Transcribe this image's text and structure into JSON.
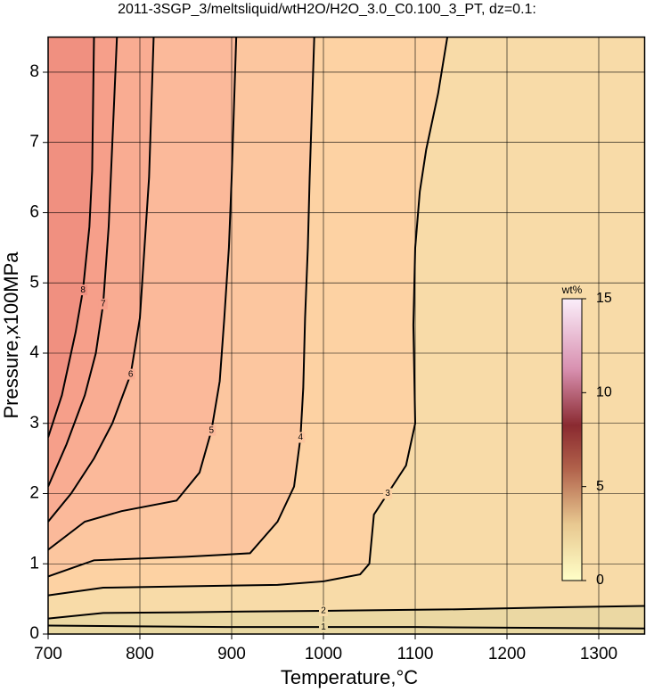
{
  "chart_data": {
    "type": "contour",
    "title": "2011-3SGP_3/meltsliquid/wtH2O/H2O_3.0_C0.100_3_PT, dz=0.1:",
    "x_label": "Temperature,°C",
    "y_label": "Pressure,x100MPa",
    "xlim": [
      700,
      1350
    ],
    "ylim": [
      0,
      8.5
    ],
    "xticks": [
      700,
      800,
      900,
      1000,
      1100,
      1200,
      1300
    ],
    "yticks": [
      0,
      1,
      2,
      3,
      4,
      5,
      6,
      7,
      8
    ],
    "grid": true,
    "background": "#e8d8a2",
    "contours": [
      {
        "level": 1,
        "fill": "#ebd8a3",
        "x": [
          700,
          800,
          900,
          1000,
          1100,
          1200,
          1350
        ],
        "y": [
          0.12,
          0.11,
          0.1,
          0.1,
          0.1,
          0.09,
          0.08
        ]
      },
      {
        "level": 2,
        "fill": "#f8dba8",
        "x": [
          700,
          760,
          850,
          915,
          1000,
          1135,
          1250,
          1350
        ],
        "y": [
          0.22,
          0.3,
          0.31,
          0.32,
          0.33,
          0.35,
          0.38,
          0.4
        ]
      },
      {
        "level": 3,
        "fill": "#fdd2a3",
        "x": [
          700,
          760,
          850,
          950,
          1000,
          1040,
          1050,
          1055,
          1070,
          1090,
          1100,
          1098,
          1100,
          1105,
          1112,
          1125,
          1135
        ],
        "y": [
          0.55,
          0.66,
          0.68,
          0.7,
          0.75,
          0.85,
          1.0,
          1.7,
          2.0,
          2.4,
          3.0,
          4.4,
          5.5,
          6.3,
          6.9,
          7.7,
          8.5
        ]
      },
      {
        "level": 4,
        "fill": "#fcc69f",
        "x": [
          700,
          750,
          850,
          920,
          950,
          968,
          975,
          978,
          980,
          983,
          985,
          990
        ],
        "y": [
          0.82,
          1.05,
          1.1,
          1.15,
          1.6,
          2.1,
          2.8,
          3.5,
          4.5,
          5.5,
          6.5,
          8.5
        ]
      },
      {
        "level": 5,
        "fill": "#fbb99a",
        "x": [
          700,
          740,
          780,
          840,
          865,
          878,
          887,
          892,
          897,
          900,
          905
        ],
        "y": [
          1.2,
          1.6,
          1.75,
          1.9,
          2.3,
          2.9,
          3.6,
          4.5,
          5.5,
          6.5,
          8.5
        ]
      },
      {
        "level": 6,
        "fill": "#f9ac92",
        "x": [
          700,
          725,
          750,
          770,
          790,
          800,
          805,
          810,
          815
        ],
        "y": [
          1.6,
          2.0,
          2.5,
          3.0,
          3.7,
          4.5,
          5.5,
          6.5,
          8.5
        ]
      },
      {
        "level": 7,
        "fill": "#f69f8a",
        "x": [
          700,
          720,
          740,
          752,
          760,
          766,
          770,
          775
        ],
        "y": [
          2.1,
          2.7,
          3.4,
          4.0,
          4.7,
          5.8,
          7.0,
          8.5
        ]
      },
      {
        "level": 8,
        "fill": "#f09080",
        "x": [
          700,
          715,
          730,
          738,
          745,
          748,
          750
        ],
        "y": [
          2.8,
          3.4,
          4.3,
          4.9,
          5.8,
          6.6,
          8.5
        ]
      }
    ],
    "colorbar": {
      "label": "wt%",
      "lim": [
        0,
        15
      ],
      "ticks": [
        0,
        5,
        10,
        15
      ]
    }
  }
}
